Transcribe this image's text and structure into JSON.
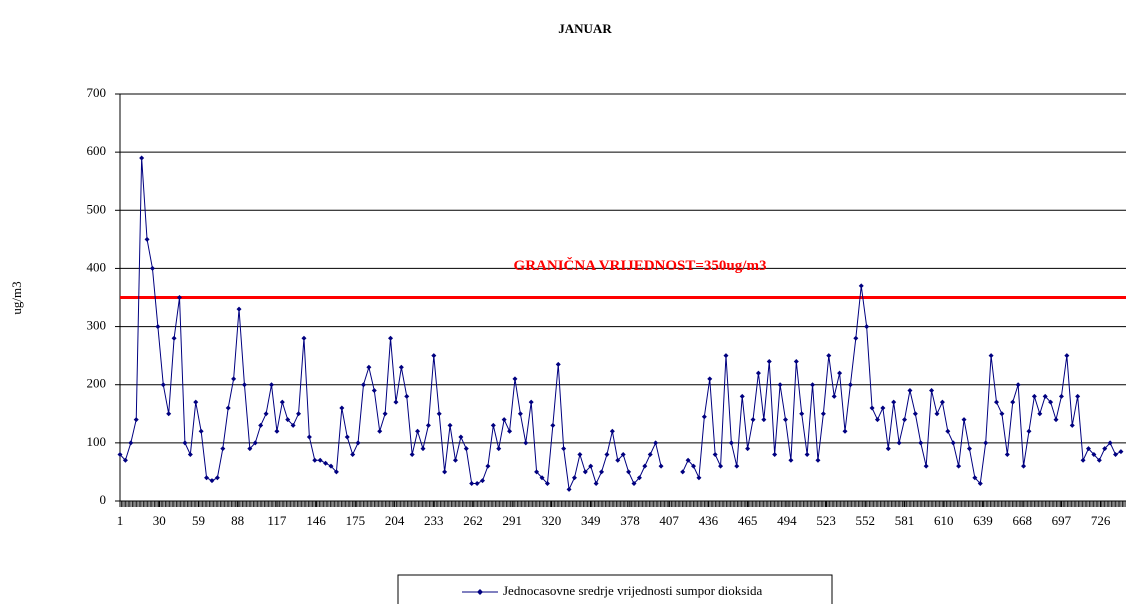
{
  "chart_data": {
    "type": "line",
    "title": "JANUAR",
    "ylabel": "ug/m3",
    "xlim": [
      1,
      744
    ],
    "ylim": [
      0,
      700
    ],
    "yticks": [
      0,
      100,
      200,
      300,
      400,
      500,
      600,
      700
    ],
    "xticks": [
      1,
      30,
      59,
      88,
      117,
      146,
      175,
      204,
      233,
      262,
      291,
      320,
      349,
      378,
      407,
      436,
      465,
      494,
      523,
      552,
      581,
      610,
      639,
      668,
      697,
      726
    ],
    "grid": true,
    "threshold": {
      "value": 350,
      "label": "GRANIČNA VRIJEDNOST=350ug/m3",
      "color": "#ff0000"
    },
    "legend": "bottom",
    "x": [
      1,
      5,
      9,
      13,
      17,
      21,
      25,
      29,
      33,
      37,
      41,
      45,
      49,
      53,
      57,
      61,
      65,
      69,
      73,
      77,
      81,
      85,
      89,
      93,
      97,
      101,
      105,
      109,
      113,
      117,
      121,
      125,
      129,
      133,
      137,
      141,
      145,
      149,
      153,
      157,
      161,
      165,
      169,
      173,
      177,
      181,
      185,
      189,
      193,
      197,
      201,
      205,
      209,
      213,
      217,
      221,
      225,
      229,
      233,
      237,
      241,
      245,
      249,
      253,
      257,
      261,
      265,
      269,
      273,
      277,
      281,
      285,
      289,
      293,
      297,
      301,
      305,
      309,
      313,
      317,
      321,
      325,
      329,
      333,
      337,
      341,
      345,
      349,
      353,
      357,
      361,
      365,
      369,
      373,
      377,
      381,
      385,
      389,
      393,
      397,
      401,
      405,
      409,
      413,
      417,
      421,
      425,
      429,
      433,
      437,
      441,
      445,
      449,
      453,
      457,
      461,
      465,
      469,
      473,
      477,
      481,
      485,
      489,
      493,
      497,
      501,
      505,
      509,
      513,
      517,
      521,
      525,
      529,
      533,
      537,
      541,
      545,
      549,
      553,
      557,
      561,
      565,
      569,
      573,
      577,
      581,
      585,
      589,
      593,
      597,
      601,
      605,
      609,
      613,
      617,
      621,
      625,
      629,
      633,
      637,
      641,
      645,
      649,
      653,
      657,
      661,
      665,
      669,
      673,
      677,
      681,
      685,
      689,
      693,
      697,
      701,
      705,
      709,
      713,
      717,
      721,
      725,
      729,
      733,
      737,
      741
    ],
    "series": [
      {
        "name": "Jednocasovne sredrje vrijednosti sumpor dioksida",
        "color": "#000080",
        "values": [
          80,
          70,
          100,
          140,
          590,
          450,
          400,
          300,
          200,
          150,
          280,
          350,
          100,
          80,
          170,
          120,
          40,
          35,
          40,
          90,
          160,
          210,
          330,
          200,
          90,
          100,
          130,
          150,
          200,
          120,
          170,
          140,
          130,
          150,
          280,
          110,
          70,
          70,
          65,
          60,
          50,
          160,
          110,
          80,
          100,
          200,
          230,
          190,
          120,
          150,
          280,
          170,
          230,
          180,
          80,
          120,
          90,
          130,
          250,
          150,
          50,
          130,
          70,
          110,
          90,
          30,
          30,
          35,
          60,
          130,
          90,
          140,
          120,
          210,
          150,
          100,
          170,
          50,
          40,
          30,
          130,
          235,
          90,
          20,
          40,
          80,
          50,
          60,
          30,
          50,
          80,
          120,
          70,
          80,
          50,
          30,
          40,
          60,
          80,
          100,
          60,
          null,
          null,
          null,
          50,
          70,
          60,
          40,
          145,
          210,
          80,
          60,
          250,
          100,
          60,
          180,
          90,
          140,
          220,
          140,
          240,
          80,
          200,
          140,
          70,
          240,
          150,
          80,
          200,
          70,
          150,
          250,
          180,
          220,
          120,
          200,
          280,
          370,
          300,
          160,
          140,
          160,
          90,
          170,
          100,
          140,
          190,
          150,
          100,
          60,
          190,
          150,
          170,
          120,
          100,
          60,
          140,
          90,
          40,
          30,
          100,
          250,
          170,
          150,
          80,
          170,
          200,
          60,
          120,
          180,
          150,
          180,
          170,
          140,
          180,
          250,
          130,
          180,
          70,
          90,
          80,
          70,
          90,
          100,
          80,
          85
        ]
      }
    ]
  }
}
